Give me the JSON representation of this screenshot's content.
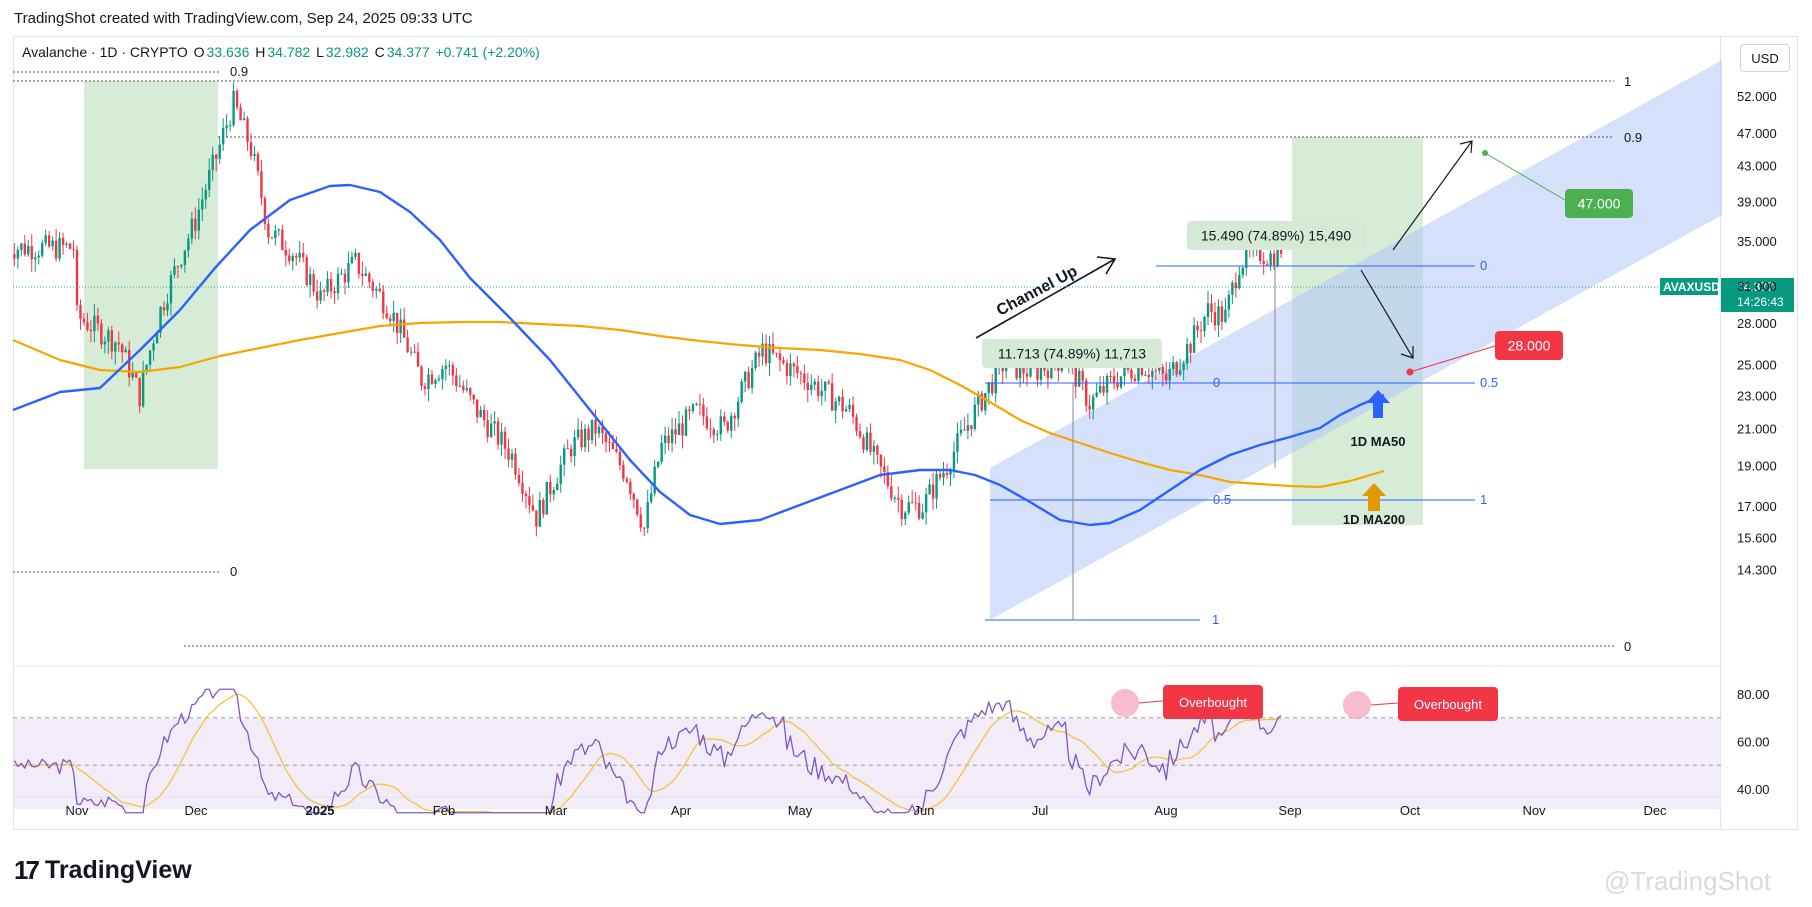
{
  "header": {
    "title": "TradingShot created with TradingView.com, Sep 24, 2025 09:33 UTC"
  },
  "legend": {
    "symbol": "Avalanche · 1D · CRYPTO",
    "o_label": "O",
    "o": "33.636",
    "h_label": "H",
    "h": "34.782",
    "l_label": "L",
    "l": "32.982",
    "c_label": "C",
    "c": "34.377",
    "change": "+0.741 (+2.20%)"
  },
  "currency_button": "USD",
  "price_tag": {
    "symbol": "AVAXUSD",
    "price": "34.377",
    "countdown": "14:26:43"
  },
  "brand": {
    "logo": "17",
    "name": "TradingView"
  },
  "watermark": "@TradingShot",
  "colors": {
    "up": "#089981",
    "down": "#f23645",
    "ma50": "#2962ff",
    "ma200": "#f7a600",
    "channel": "#b3c7f7",
    "rsi": "#7e57c2",
    "rsi_ma": "#f7c33b",
    "green_box": "#c8e6c9",
    "label_green": "#4caf50",
    "label_red": "#f23645"
  },
  "chart_data": {
    "type": "candlestick",
    "y_ticks": [
      "52.000",
      "47.000",
      "43.000",
      "39.000",
      "35.000",
      "31.000",
      "28.000",
      "25.000",
      "23.000",
      "21.000",
      "19.000",
      "17.000",
      "15.600",
      "14.300"
    ],
    "x_ticks": [
      "Nov",
      "Dec",
      "2025",
      "Feb",
      "Mar",
      "Apr",
      "May",
      "Jun",
      "Jul",
      "Aug",
      "Sep",
      "Oct",
      "Nov",
      "Dec"
    ],
    "scale": "log",
    "rsi_ticks": [
      "80.00",
      "60.00",
      "40.00"
    ],
    "indicators": [
      "1D MA50",
      "1D MA200",
      "RSI"
    ],
    "annotations": {
      "channel_label": "Channel Up",
      "measure_1": "11.713 (74.89%) 11,713",
      "measure_2": "15.490 (74.89%) 15,490",
      "target_up": "47.000",
      "target_down": "28.000",
      "ma50_label": "1D MA50",
      "ma200_label": "1D MA200",
      "overbought_1": "Overbought",
      "overbought_2": "Overbought"
    },
    "fib_labels": {
      "big_top": "1",
      "big_09": "0.9",
      "big_09_left": "0.9",
      "big_0_left": "0",
      "big_0": "0",
      "small_0_top": "0",
      "small_05_top": "0.5",
      "small_1_top": "1",
      "small_0_mid": "0",
      "small_05_mid": "0.5",
      "small_1_bot": "1"
    }
  }
}
